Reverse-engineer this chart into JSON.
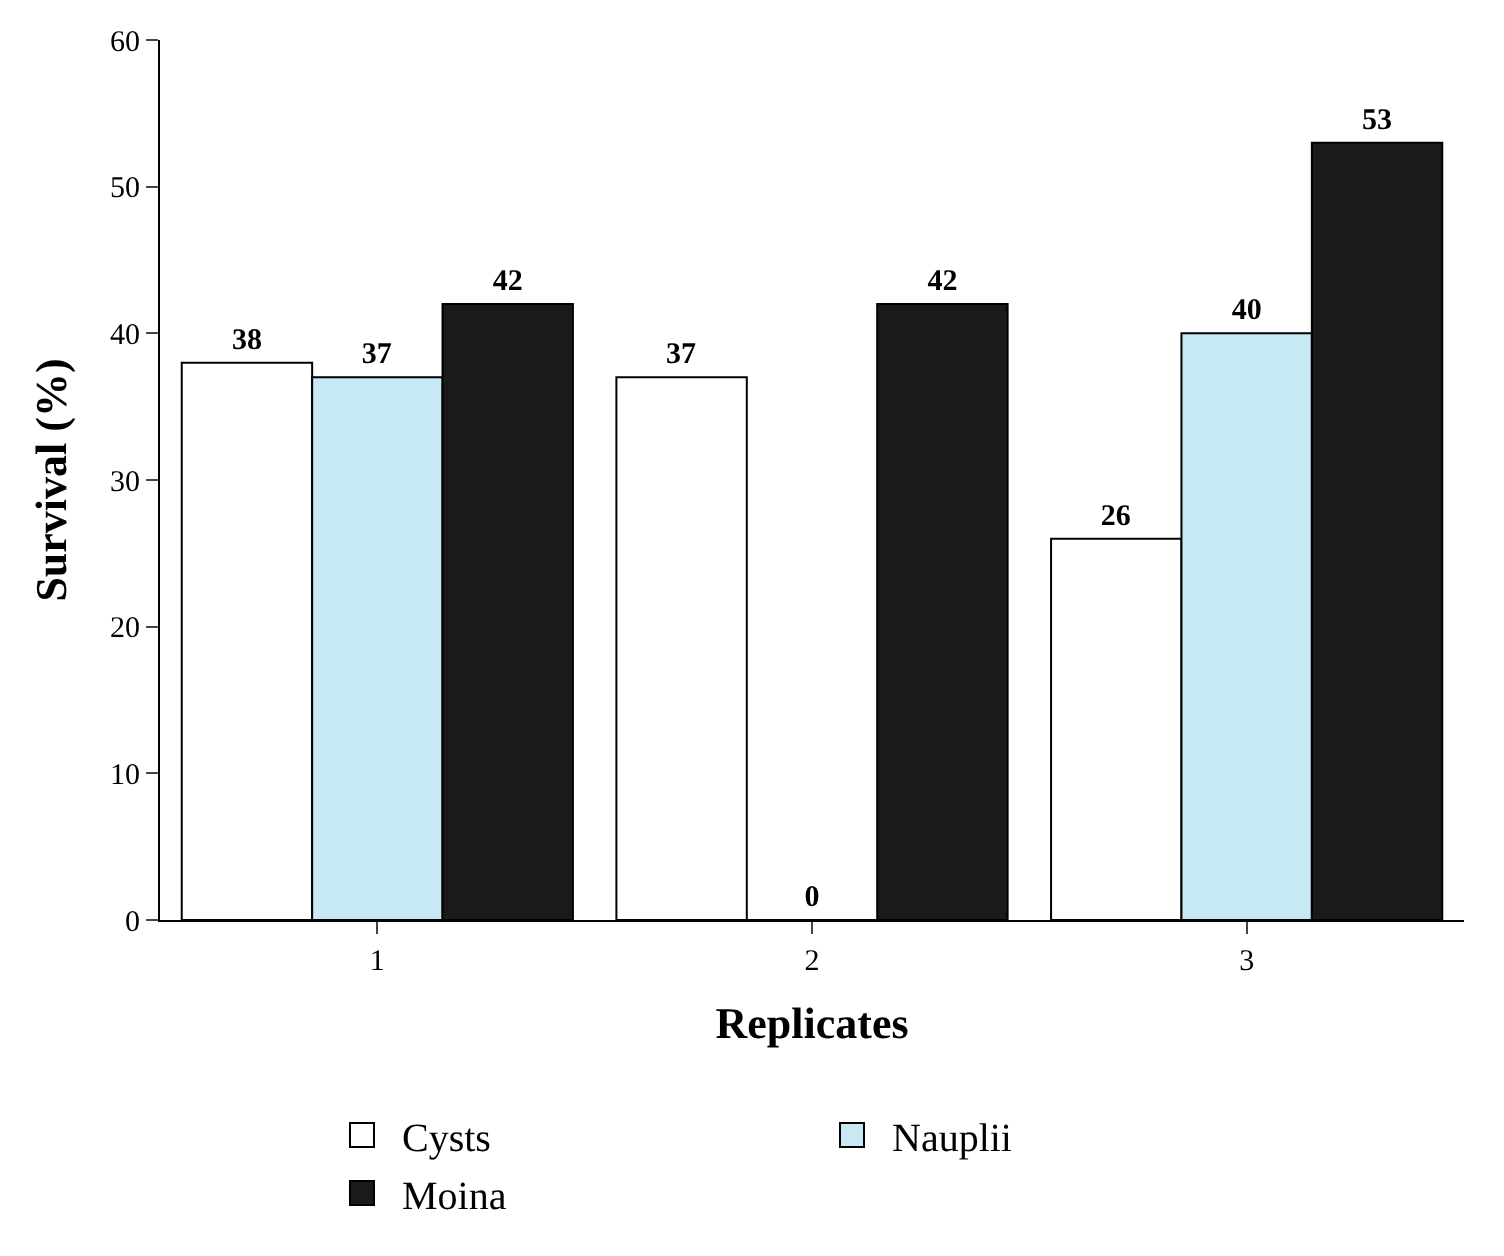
{
  "chart_data": {
    "type": "bar",
    "xlabel": "Replicates",
    "ylabel": "Survival (%)",
    "categories": [
      "1",
      "2",
      "3"
    ],
    "series": [
      {
        "name": "Cysts",
        "color": "#ffffff",
        "values": [
          38,
          37,
          26
        ]
      },
      {
        "name": "Nauplii",
        "color": "#c6e9f3",
        "values": [
          37,
          0,
          40
        ]
      },
      {
        "name": "Moina",
        "color": "#1a1a1a",
        "values": [
          42,
          42,
          53
        ]
      }
    ],
    "ylim": [
      0,
      60
    ],
    "yticks": [
      0,
      10,
      20,
      30,
      40,
      50,
      60
    ],
    "data_labels": true,
    "legend": "bottom"
  }
}
